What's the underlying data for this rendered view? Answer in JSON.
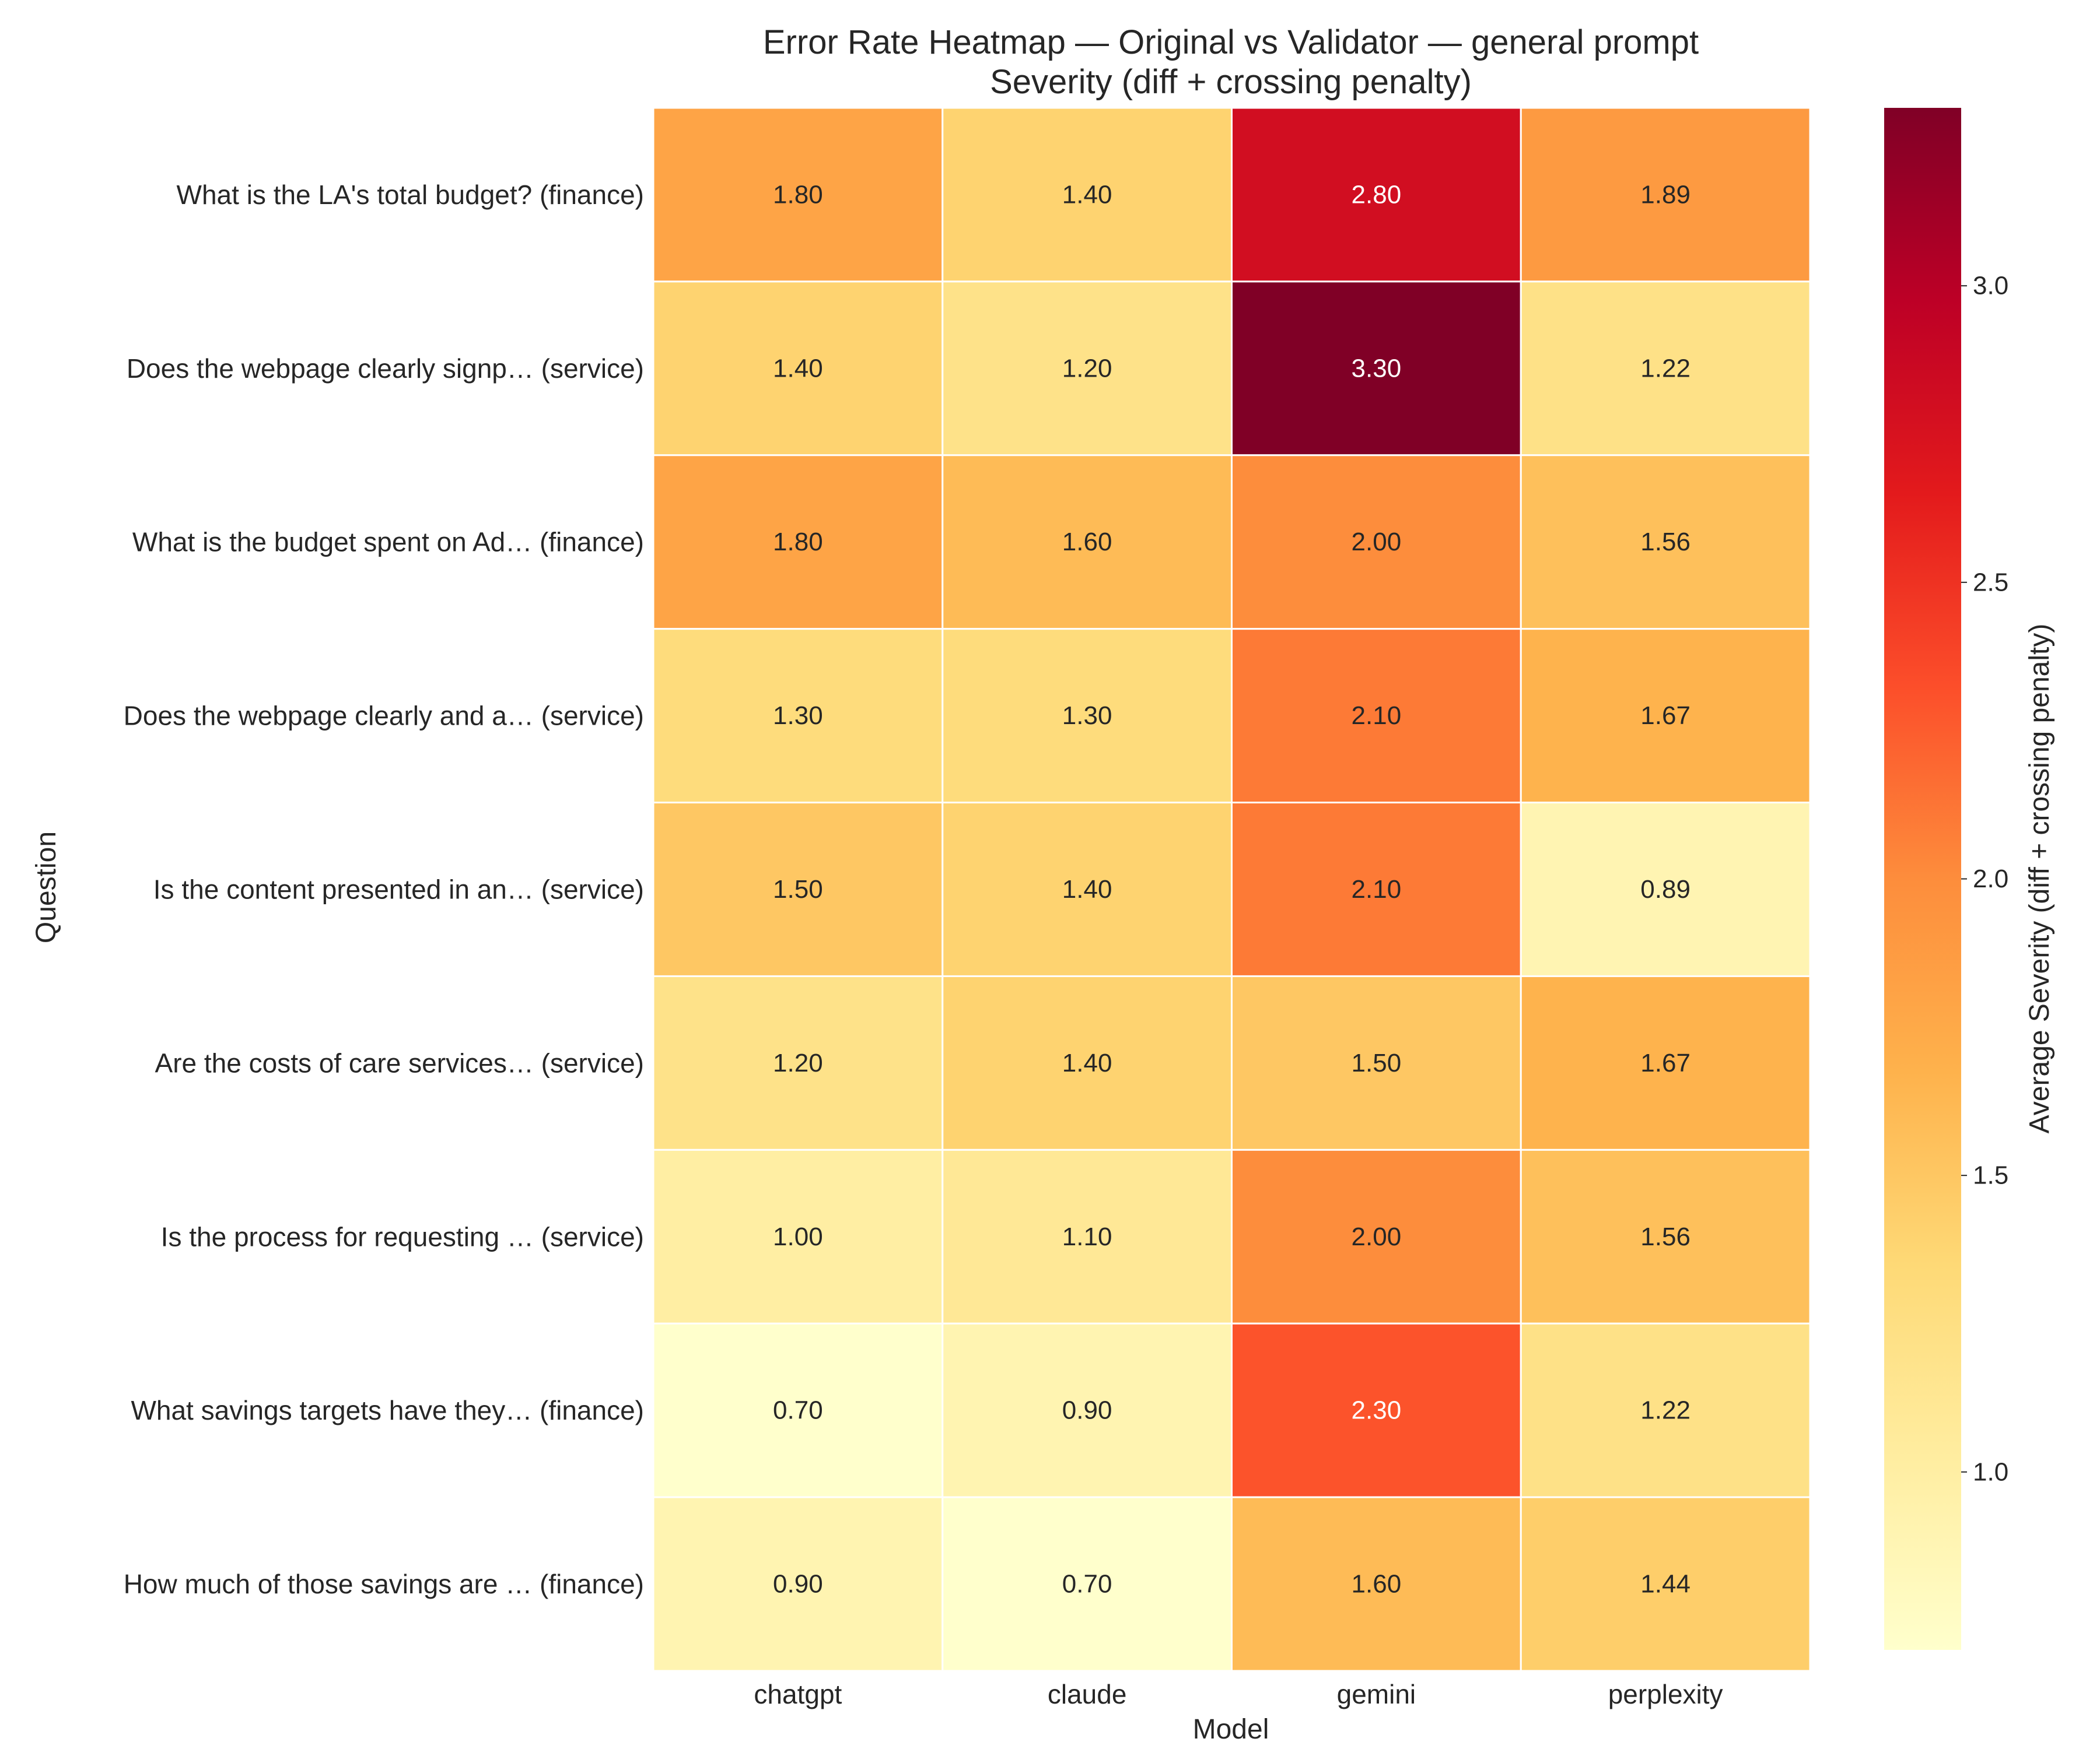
{
  "chart_data": {
    "type": "heatmap",
    "title": "Error Rate Heatmap — Original vs Validator — general prompt",
    "subtitle": "Severity (diff + crossing penalty)",
    "xlabel": "Model",
    "ylabel": "Question",
    "x_categories": [
      "chatgpt",
      "claude",
      "gemini",
      "perplexity"
    ],
    "y_categories": [
      "What is the LA's total budget? (finance)",
      "Does the webpage clearly signp… (service)",
      "What is the budget spent on Ad… (finance)",
      "Does the webpage clearly and a… (service)",
      "Is the content presented in an… (service)",
      "Are the costs of care services… (service)",
      "Is the process for requesting … (service)",
      "What savings targets have they… (finance)",
      "How much of those savings are … (finance)"
    ],
    "values": [
      [
        1.8,
        1.4,
        2.8,
        1.89
      ],
      [
        1.4,
        1.2,
        3.3,
        1.22
      ],
      [
        1.8,
        1.6,
        2.0,
        1.56
      ],
      [
        1.3,
        1.3,
        2.1,
        1.67
      ],
      [
        1.5,
        1.4,
        2.1,
        0.89
      ],
      [
        1.2,
        1.4,
        1.5,
        1.67
      ],
      [
        1.0,
        1.1,
        2.0,
        1.56
      ],
      [
        0.7,
        0.9,
        2.3,
        1.22
      ],
      [
        0.9,
        0.7,
        1.6,
        1.44
      ]
    ],
    "value_labels": [
      [
        "1.80",
        "1.40",
        "2.80",
        "1.89"
      ],
      [
        "1.40",
        "1.20",
        "3.30",
        "1.22"
      ],
      [
        "1.80",
        "1.60",
        "2.00",
        "1.56"
      ],
      [
        "1.30",
        "1.30",
        "2.10",
        "1.67"
      ],
      [
        "1.50",
        "1.40",
        "2.10",
        "0.89"
      ],
      [
        "1.20",
        "1.40",
        "1.50",
        "1.67"
      ],
      [
        "1.00",
        "1.10",
        "2.00",
        "1.56"
      ],
      [
        "0.70",
        "0.90",
        "2.30",
        "1.22"
      ],
      [
        "0.90",
        "0.70",
        "1.60",
        "1.44"
      ]
    ],
    "colormap": "YlOrRd",
    "vmin": 0.7,
    "vmax": 3.3,
    "colorbar": {
      "label": "Average Severity (diff + crossing penalty)",
      "ticks": [
        1.0,
        1.5,
        2.0,
        2.5,
        3.0
      ],
      "tick_labels": [
        "1.0",
        "1.5",
        "2.0",
        "2.5",
        "3.0"
      ]
    },
    "grid": false,
    "cell_border_color": "#ffffff"
  }
}
